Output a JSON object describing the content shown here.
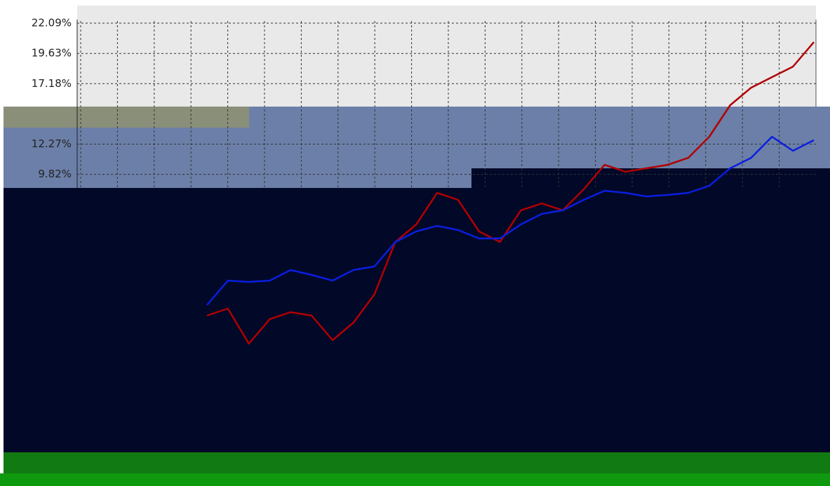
{
  "chart_data": {
    "type": "line",
    "ylim": [
      -14.73,
      22.09
    ],
    "yticks": [
      {
        "value": 22.09,
        "label": "22.09%"
      },
      {
        "value": 19.63,
        "label": "19.63%"
      },
      {
        "value": 17.18,
        "label": "17.18%"
      },
      {
        "value": 12.27,
        "label": "12.27%"
      },
      {
        "value": 9.82,
        "label": "9.82%"
      }
    ],
    "grid": true,
    "series": [
      {
        "color": "#b00000",
        "values": [
          -1.64,
          -1.07,
          -3.92,
          -1.93,
          -1.36,
          -1.64,
          -3.63,
          -2.21,
          0.07,
          4.33,
          5.76,
          8.32,
          7.75,
          5.19,
          4.33,
          6.9,
          7.46,
          6.9,
          8.6,
          10.59,
          10.03,
          10.31,
          10.59,
          11.16,
          12.87,
          15.43,
          16.85,
          17.71,
          18.56,
          20.55
        ]
      },
      {
        "color": "#0a1ee0",
        "values": [
          -0.79,
          1.2,
          1.09,
          1.2,
          2.06,
          1.66,
          1.2,
          2.06,
          2.34,
          4.33,
          5.19,
          5.64,
          5.3,
          4.62,
          4.62,
          5.76,
          6.61,
          6.9,
          7.75,
          8.49,
          8.32,
          8.03,
          8.15,
          8.32,
          8.89,
          10.31,
          11.16,
          12.87,
          11.73,
          12.59
        ]
      }
    ]
  }
}
